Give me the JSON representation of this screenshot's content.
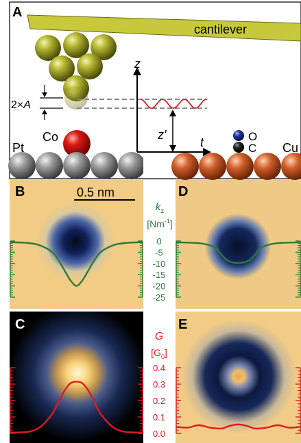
{
  "panel_labels": {
    "a": "A",
    "b": "B",
    "c": "C",
    "d": "D",
    "e": "E"
  },
  "panel_a": {
    "cantilever": "cantilever",
    "amplitude_prefix": "2×",
    "amplitude_symbol": "A",
    "z_axis": "z",
    "z_prime": "z'",
    "t_axis": "t",
    "tip_atom": "Co",
    "left_surface": "Pt",
    "right_surface": "Cu",
    "oxygen": "O",
    "carbon": "C",
    "colors": {
      "cantilever": "#c8c83c",
      "tip_atom": "#8a8a14",
      "cobalt": "#cc1010",
      "platinum": "#8c8c8c",
      "copper": "#c85a28",
      "oxygen": "#1c2a8c",
      "carbon": "#111111",
      "oscillation": "#d4202a"
    }
  },
  "scale_bar": "0.5 nm",
  "kz_axis": {
    "symbol": "k",
    "subscript": "z",
    "unit_open": "[Nm",
    "unit_exp": "-1",
    "unit_close": "]",
    "ticks": [
      "0",
      "-5",
      "-10",
      "-15",
      "-20",
      "-25"
    ],
    "color": "#2a7a3a"
  },
  "g_axis": {
    "symbol": "G",
    "unit_open": "[G",
    "unit_sub": "0",
    "unit_close": "]",
    "ticks": [
      "0.4",
      "0.3",
      "0.2",
      "0.1",
      "0.0"
    ],
    "color": "#e0191f"
  },
  "chart_data": [
    {
      "panel": "B",
      "type": "line",
      "ylabel": "kz [Nm-1]",
      "ylim": [
        -25,
        0
      ],
      "series": [
        {
          "x": [
            -0.55,
            -0.4,
            -0.3,
            -0.2,
            -0.15,
            -0.1,
            -0.05,
            0,
            0.05,
            0.1,
            0.15,
            0.2,
            0.3,
            0.4,
            0.55
          ],
          "values": [
            -0.5,
            -0.9,
            -2,
            -5,
            -8.5,
            -13,
            -17.5,
            -20,
            -17.5,
            -13,
            -8.5,
            -5,
            -2,
            -0.9,
            -0.5
          ]
        }
      ]
    },
    {
      "panel": "D",
      "type": "line",
      "ylabel": "kz [Nm-1]",
      "ylim": [
        -25,
        0
      ],
      "series": [
        {
          "x": [
            -0.55,
            -0.4,
            -0.3,
            -0.2,
            -0.15,
            -0.1,
            -0.05,
            0,
            0.05,
            0.1,
            0.15,
            0.2,
            0.3,
            0.4,
            0.55
          ],
          "values": [
            -0.6,
            -0.8,
            -1.3,
            -3,
            -6,
            -8.5,
            -9.5,
            -9.8,
            -9.5,
            -8.5,
            -6,
            -3,
            -1.3,
            -0.8,
            -0.6
          ]
        }
      ]
    },
    {
      "panel": "C",
      "type": "line",
      "ylabel": "G [G0]",
      "ylim": [
        0,
        0.4
      ],
      "series": [
        {
          "x": [
            -0.55,
            -0.4,
            -0.3,
            -0.2,
            -0.15,
            -0.1,
            -0.05,
            0,
            0.05,
            0.1,
            0.15,
            0.2,
            0.3,
            0.4,
            0.55
          ],
          "values": [
            0.005,
            0.01,
            0.04,
            0.12,
            0.19,
            0.26,
            0.305,
            0.315,
            0.305,
            0.26,
            0.19,
            0.12,
            0.04,
            0.01,
            0.005
          ]
        }
      ]
    },
    {
      "panel": "E",
      "type": "line",
      "ylabel": "G [G0]",
      "ylim": [
        0,
        0.4
      ],
      "series": [
        {
          "x": [
            -0.55,
            -0.45,
            -0.35,
            -0.25,
            -0.15,
            -0.08,
            0,
            0.08,
            0.15,
            0.25,
            0.35,
            0.45,
            0.55
          ],
          "values": [
            0.04,
            0.035,
            0.05,
            0.035,
            0.03,
            0.045,
            0.055,
            0.045,
            0.03,
            0.035,
            0.05,
            0.035,
            0.04
          ]
        }
      ]
    }
  ]
}
